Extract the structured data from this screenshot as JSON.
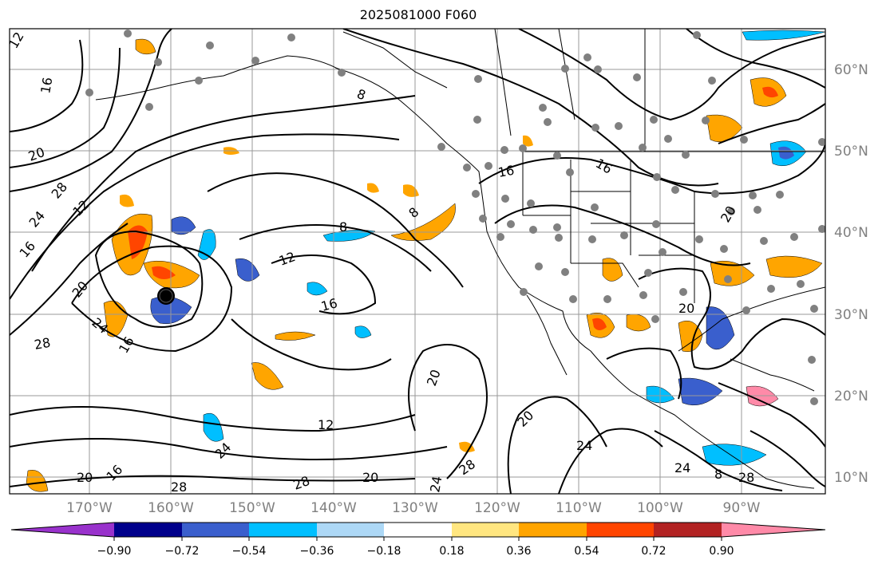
{
  "title": "2025081000 F060",
  "map": {
    "lat_labels": [
      "60°N",
      "50°N",
      "40°N",
      "30°N",
      "20°N",
      "10°N"
    ],
    "lon_labels": [
      "170°W",
      "160°W",
      "150°W",
      "140°W",
      "130°W",
      "120°W",
      "110°W",
      "100°W",
      "90°W"
    ],
    "contour_labels": [
      "12",
      "16",
      "20",
      "28",
      "24",
      "16",
      "12",
      "8",
      "8",
      "12",
      "8",
      "16",
      "16",
      "20",
      "24",
      "28",
      "12",
      "20",
      "28",
      "20",
      "24",
      "16",
      "20",
      "24",
      "28",
      "24",
      "28",
      "20",
      "24",
      "8",
      "16",
      "16",
      "20",
      "28",
      "20"
    ],
    "marker": "storm-center"
  },
  "colorbar": {
    "tick_labels": [
      "−0.90",
      "−0.72",
      "−0.54",
      "−0.36",
      "−0.18",
      "0.18",
      "0.36",
      "0.54",
      "0.72",
      "0.90"
    ],
    "colors": [
      "#9932cc",
      "#00008b",
      "#3a5fcd",
      "#00bfff",
      "#add8f6",
      "#ffffff",
      "#ffe680",
      "#ffa500",
      "#ff4500",
      "#b22222",
      "#ff8aa8"
    ]
  }
}
